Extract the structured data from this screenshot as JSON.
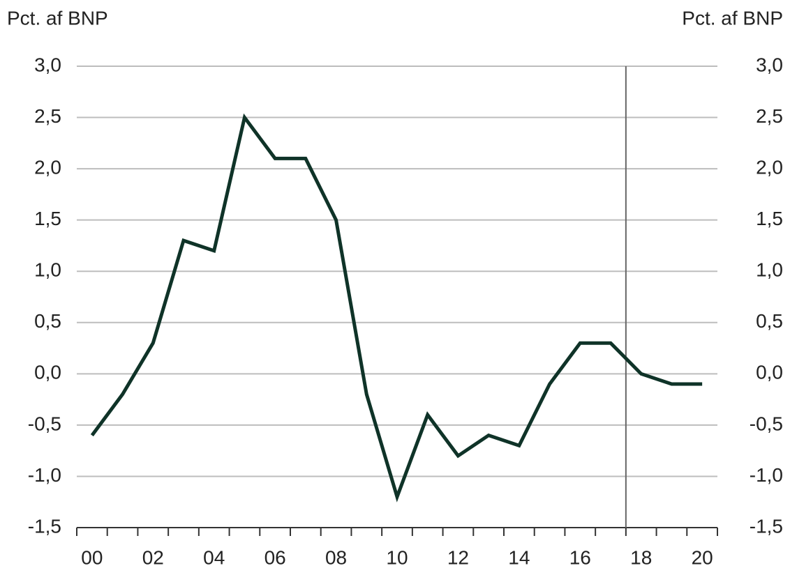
{
  "chart_data": {
    "type": "line",
    "y_label": "Pct. af BNP",
    "y2_label": "Pct. af BNP",
    "categories": [
      "00",
      null,
      "02",
      null,
      "04",
      null,
      "06",
      null,
      "08",
      null,
      "10",
      null,
      "12",
      null,
      "14",
      null,
      "16",
      null,
      "18",
      null,
      "20"
    ],
    "series": [
      {
        "name": null,
        "color": "#0f3328",
        "values": [
          -0.6,
          -0.2,
          0.3,
          1.3,
          1.2,
          2.5,
          2.1,
          2.1,
          1.5,
          -0.2,
          -1.2,
          -0.4,
          -0.8,
          -0.6,
          -0.7,
          -0.1,
          0.3,
          0.3,
          0.0,
          -0.1,
          -0.1
        ]
      }
    ],
    "ylim": [
      -1.5,
      3.0
    ],
    "yticks": [
      {
        "value": -1.5,
        "label": "-1,5"
      },
      {
        "value": -1.0,
        "label": "-1,0"
      },
      {
        "value": -0.5,
        "label": "-0,5"
      },
      {
        "value": 0.0,
        "label": "0,0"
      },
      {
        "value": 0.5,
        "label": "0,5"
      },
      {
        "value": 1.0,
        "label": "1,0"
      },
      {
        "value": 1.5,
        "label": "1,5"
      },
      {
        "value": 2.0,
        "label": "2,0"
      },
      {
        "value": 2.5,
        "label": "2,5"
      },
      {
        "value": 3.0,
        "label": "3,0"
      }
    ],
    "y2lim": [
      -1.5,
      3.0
    ],
    "y2ticks": [
      {
        "value": -1.5,
        "label": "-1,5"
      },
      {
        "value": -1.0,
        "label": "-1,0"
      },
      {
        "value": -0.5,
        "label": "-0,5"
      },
      {
        "value": 0.0,
        "label": "0,0"
      },
      {
        "value": 0.5,
        "label": "0,5"
      },
      {
        "value": 1.0,
        "label": "1,0"
      },
      {
        "value": 1.5,
        "label": "1,5"
      },
      {
        "value": 2.0,
        "label": "2,0"
      },
      {
        "value": 2.5,
        "label": "2,5"
      },
      {
        "value": 3.0,
        "label": "3,0"
      }
    ],
    "grid": true
  }
}
